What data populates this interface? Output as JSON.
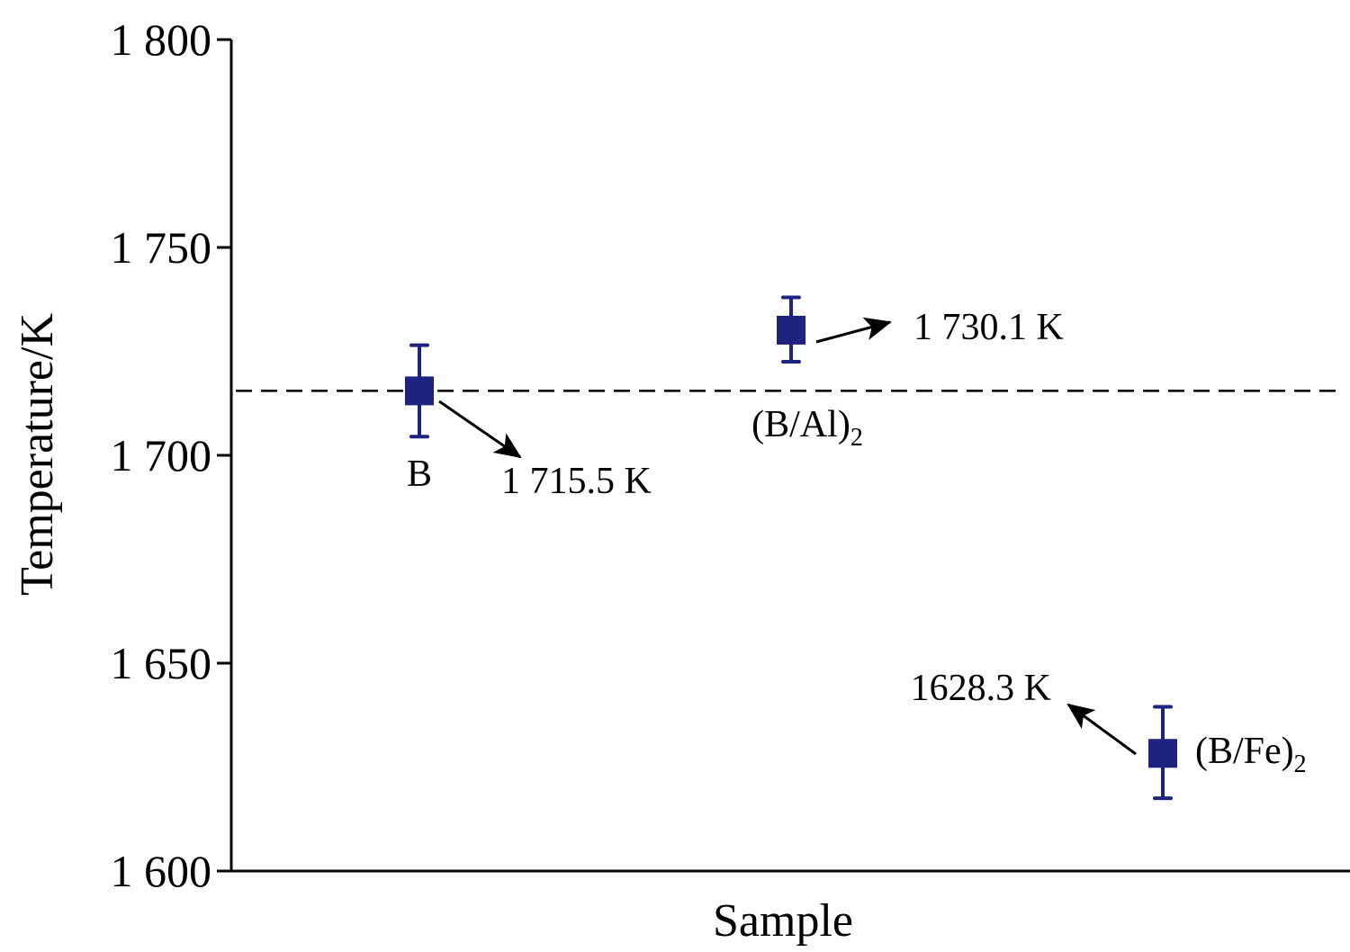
{
  "chart_data": {
    "type": "scatter",
    "xlabel": "Sample",
    "ylabel": "Temperature/K",
    "ylim": [
      1600,
      1800
    ],
    "yticks": [
      1600,
      1650,
      1700,
      1750,
      1800
    ],
    "ytick_labels": [
      "1 600",
      "1 650",
      "1 700",
      "1 750",
      "1 800"
    ],
    "reference_line": {
      "y": 1715.5,
      "style": "dashed"
    },
    "marker_color": "#1f2380",
    "points": [
      {
        "category": "B",
        "y": 1715.5,
        "err_low": 1704.5,
        "err_high": 1726.5,
        "label_main": "B",
        "label_sub": "",
        "value_label": "1 715.5 K"
      },
      {
        "category": "(B/Al)2",
        "y": 1730.1,
        "err_low": 1722.5,
        "err_high": 1738.0,
        "label_main": "(B/Al)",
        "label_sub": "2",
        "value_label": "1 730.1 K"
      },
      {
        "category": "(B/Fe)2",
        "y": 1628.3,
        "err_low": 1617.5,
        "err_high": 1639.5,
        "label_main": "(B/Fe)",
        "label_sub": "2",
        "value_label": "1628.3 K"
      }
    ]
  }
}
